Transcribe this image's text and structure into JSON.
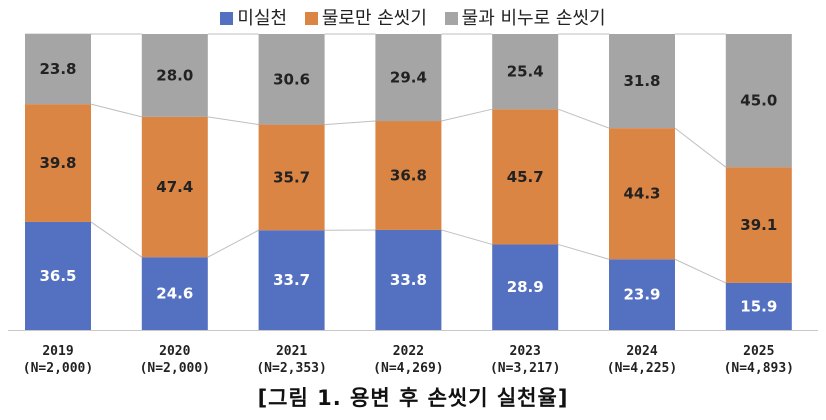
{
  "chart_data": {
    "type": "bar",
    "stacked": true,
    "categories": [
      "2019",
      "2020",
      "2021",
      "2022",
      "2023",
      "2024",
      "2025"
    ],
    "sample_sizes": [
      "(N=2,000)",
      "(N=2,000)",
      "(N=2,353)",
      "(N=4,269)",
      "(N=3,217)",
      "(N=4,225)",
      "(N=4,893)"
    ],
    "series": [
      {
        "name": "미실천",
        "color": "#5470C1",
        "values": [
          36.5,
          24.6,
          33.7,
          33.8,
          28.9,
          23.9,
          15.9
        ]
      },
      {
        "name": "물로만 손씻기",
        "color": "#DB8545",
        "values": [
          39.8,
          47.4,
          35.7,
          36.8,
          45.7,
          44.3,
          39.1
        ]
      },
      {
        "name": "물과 비누로 손씻기",
        "color": "#A5A5A5",
        "values": [
          23.8,
          28.0,
          30.6,
          29.4,
          25.4,
          31.8,
          45.0
        ]
      }
    ],
    "ylim": [
      0,
      100
    ],
    "legend_position": "top",
    "caption": "[그림 1. 용변 후 손씻기 실천율]"
  }
}
